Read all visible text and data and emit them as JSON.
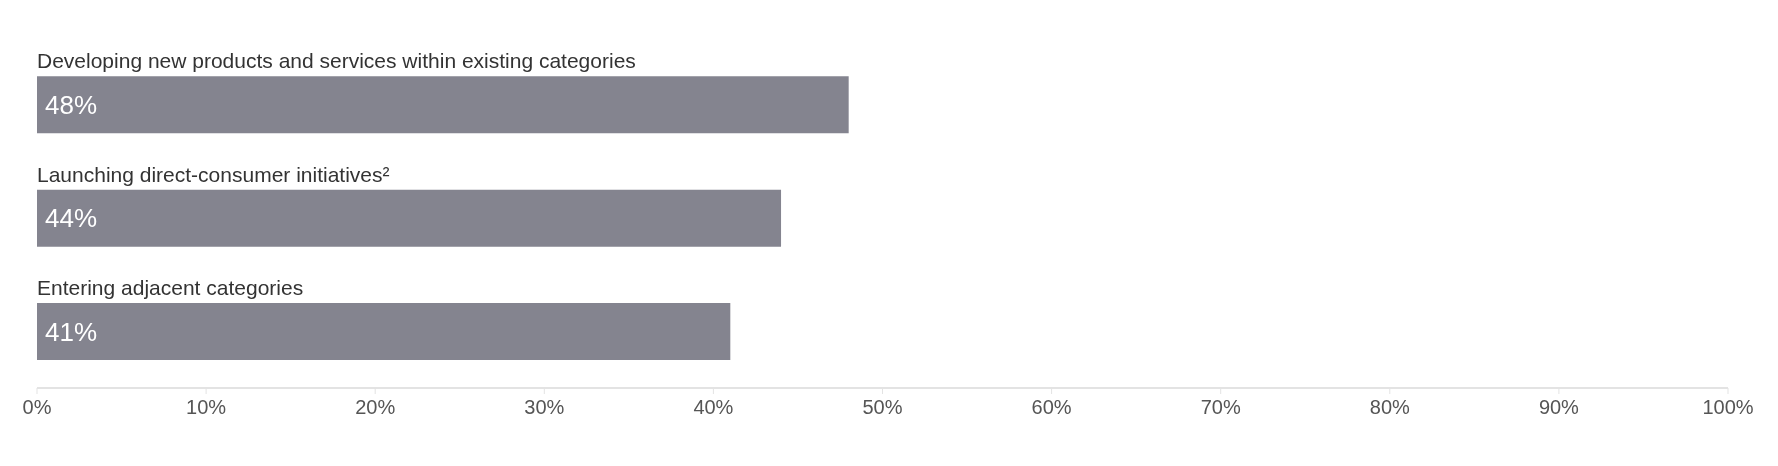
{
  "chart_data": {
    "type": "bar",
    "orientation": "horizontal",
    "categories": [
      "Developing new products and services within existing categories",
      "Launching direct-consumer initiatives²",
      "Entering adjacent categories"
    ],
    "values": [
      48,
      44,
      41
    ],
    "value_labels": [
      "48%",
      "44%",
      "41%"
    ],
    "color": "#84848f",
    "xlim": [
      0,
      100
    ],
    "xticks": [
      {
        "value": 0,
        "label": "0%"
      },
      {
        "value": 10,
        "label": "10%"
      },
      {
        "value": 20,
        "label": "20%"
      },
      {
        "value": 30,
        "label": "30%"
      },
      {
        "value": 40,
        "label": "40%"
      },
      {
        "value": 50,
        "label": "50%"
      },
      {
        "value": 60,
        "label": "60%"
      },
      {
        "value": 70,
        "label": "70%"
      },
      {
        "value": 80,
        "label": "80%"
      },
      {
        "value": 90,
        "label": "90%"
      },
      {
        "value": 100,
        "label": "100%"
      }
    ],
    "grid": false
  }
}
